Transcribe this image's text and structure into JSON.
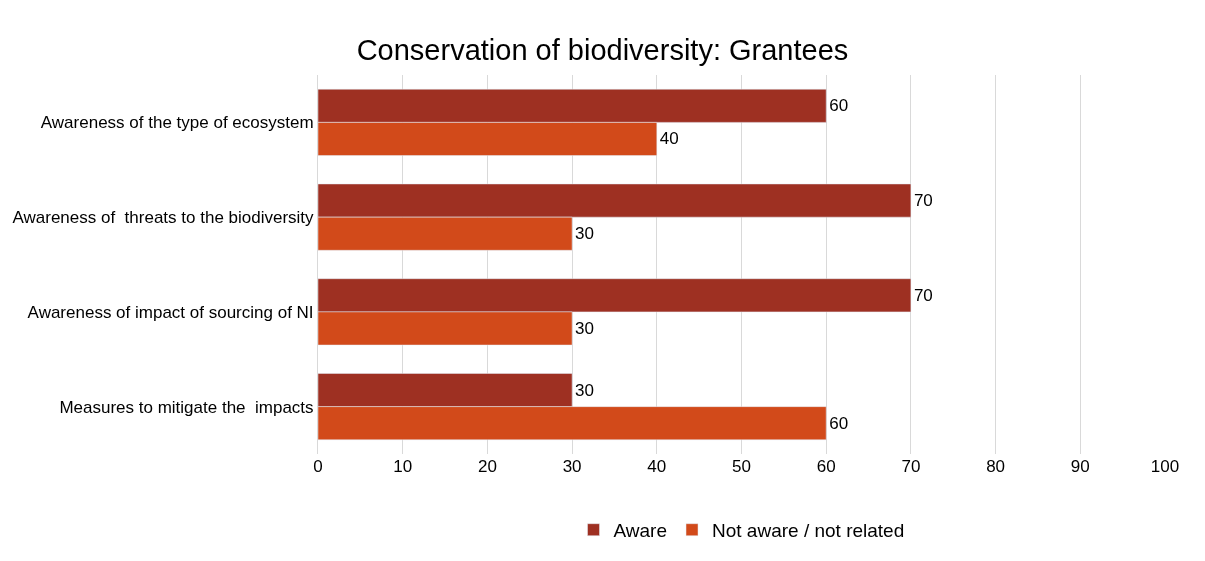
{
  "chart_data": {
    "type": "bar",
    "orientation": "horizontal",
    "title": "Conservation of biodiversity: Grantees",
    "categories": [
      "Awareness of the type of ecosystem",
      "Awareness of  threats to the biodiversity",
      "Awareness of impact of sourcing of NI",
      "Measures to mitigate the  impacts"
    ],
    "series": [
      {
        "name": "Aware",
        "color": "#9e3022",
        "values": [
          60,
          70,
          70,
          30
        ]
      },
      {
        "name": "Not aware / not related",
        "color": "#d24a1a",
        "values": [
          40,
          30,
          30,
          60
        ]
      }
    ],
    "xlim": [
      0,
      100
    ],
    "xticks": [
      0,
      10,
      20,
      30,
      40,
      50,
      60,
      70,
      80,
      90,
      100
    ],
    "grid": "x",
    "legend": "bottom",
    "data_labels": true
  }
}
